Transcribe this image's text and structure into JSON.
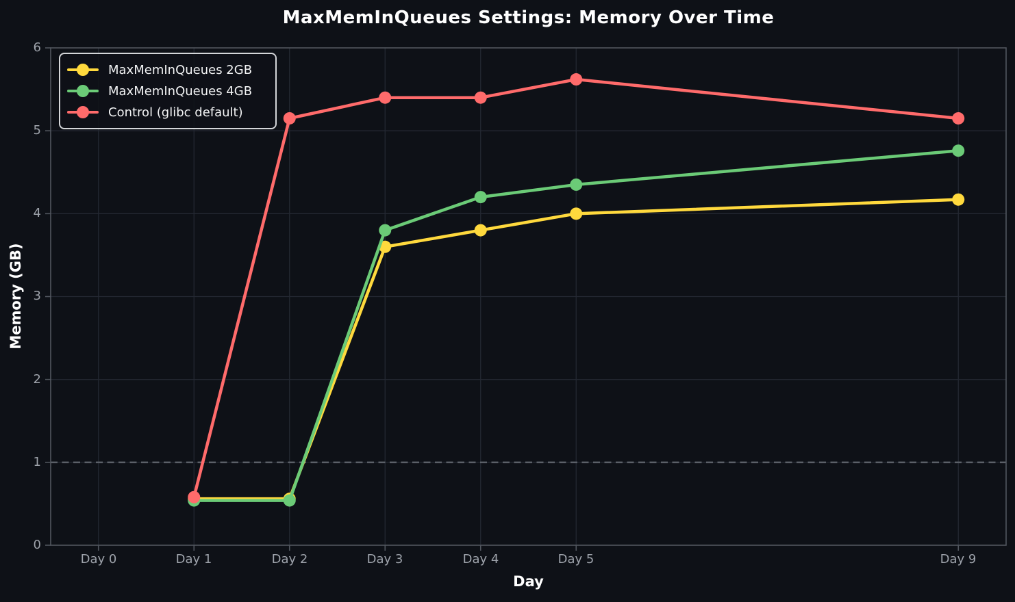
{
  "chart_data": {
    "type": "line",
    "title": "MaxMemInQueues Settings: Memory Over Time",
    "xlabel": "Day",
    "ylabel": "Memory (GB)",
    "x": [
      1,
      2,
      3,
      4,
      5,
      9
    ],
    "x_ticks": [
      0,
      1,
      2,
      3,
      4,
      5,
      9
    ],
    "x_tick_labels": [
      "Day 0",
      "Day 1",
      "Day 2",
      "Day 3",
      "Day 4",
      "Day 5",
      "Day 9"
    ],
    "y_ticks": [
      0,
      1,
      2,
      3,
      4,
      5,
      6
    ],
    "y_tick_labels": [
      "0",
      "1",
      "2",
      "3",
      "4",
      "5",
      "6"
    ],
    "xlim": [
      -0.5,
      9.5
    ],
    "ylim": [
      0,
      6
    ],
    "grid": true,
    "legend_position": "upper-left",
    "reference_line": {
      "y": 1,
      "style": "dashed",
      "color": "#5b6068"
    },
    "series": [
      {
        "name": "MaxMemInQueues 2GB",
        "color": "#ffd93d",
        "values": [
          0.56,
          0.56,
          3.6,
          3.8,
          4.0,
          4.17
        ]
      },
      {
        "name": "MaxMemInQueues 4GB",
        "color": "#6bcb77",
        "values": [
          0.54,
          0.54,
          3.8,
          4.2,
          4.35,
          4.76
        ]
      },
      {
        "name": "Control (glibc default)",
        "color": "#ff6b6b",
        "values": [
          0.58,
          5.15,
          5.4,
          5.4,
          5.62,
          5.15
        ]
      }
    ]
  },
  "colors": {
    "background": "#0e1117",
    "grid": "#242832",
    "spine": "#51565e",
    "tick_label": "#9ea3ab",
    "title_text": "#ffffff",
    "legend_border": "#d4d6d9",
    "legend_text": "#f2f3f4"
  }
}
